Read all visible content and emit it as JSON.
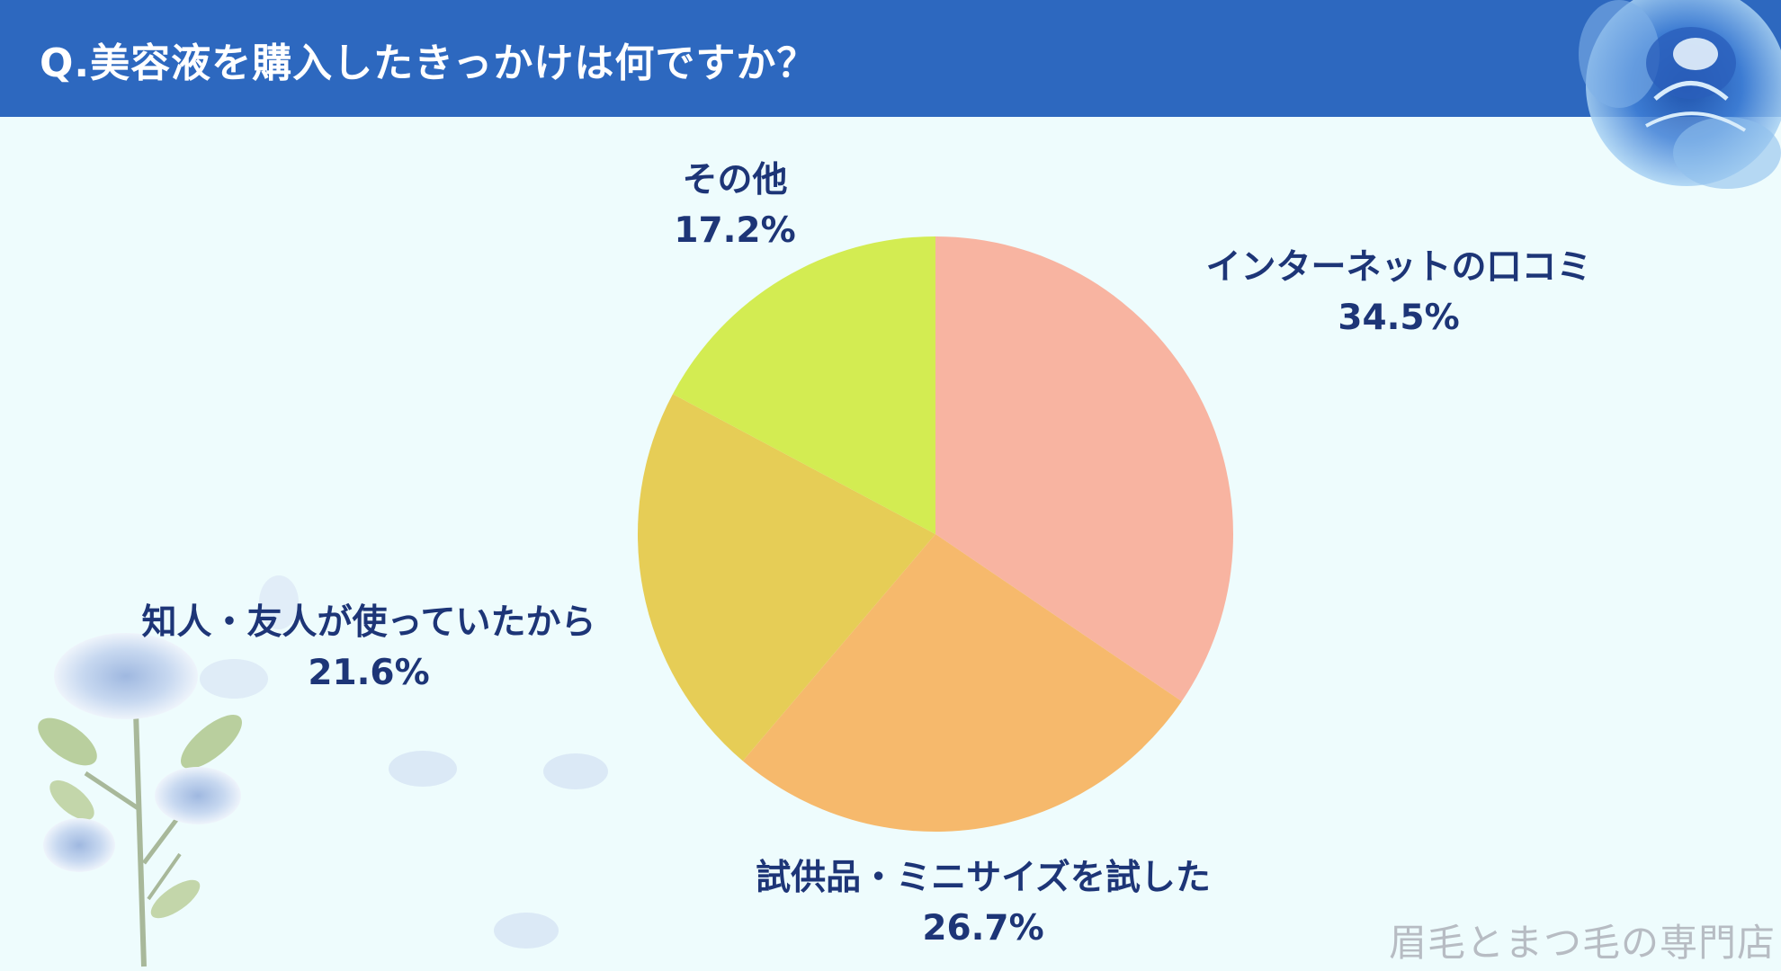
{
  "header": {
    "title": "Q.美容液を購入したきっかけは何ですか？"
  },
  "chart_data": {
    "type": "pie",
    "title": "Q.美容液を購入したきっかけは何ですか？",
    "start_angle_deg": 0,
    "direction": "clockwise",
    "slices": [
      {
        "label": "インターネットの口コミ",
        "value": 34.5,
        "value_text": "34.5%",
        "color": "#f8b4a1"
      },
      {
        "label": "試供品・ミニサイズを試した",
        "value": 26.7,
        "value_text": "26.7%",
        "color": "#f6b96c"
      },
      {
        "label": "知人・友人が使っていたから",
        "value": 21.6,
        "value_text": "21.6%",
        "color": "#e6cd56"
      },
      {
        "label": "その他",
        "value": 17.2,
        "value_text": "17.2%",
        "color": "#d3ec52"
      }
    ]
  },
  "watermark": "眉毛とまつ毛の専門店",
  "colors": {
    "header_background": "#2d68bf",
    "page_background": "#eefcfd",
    "label_text": "#1d3577",
    "watermark_text": "#b7bcc3"
  }
}
